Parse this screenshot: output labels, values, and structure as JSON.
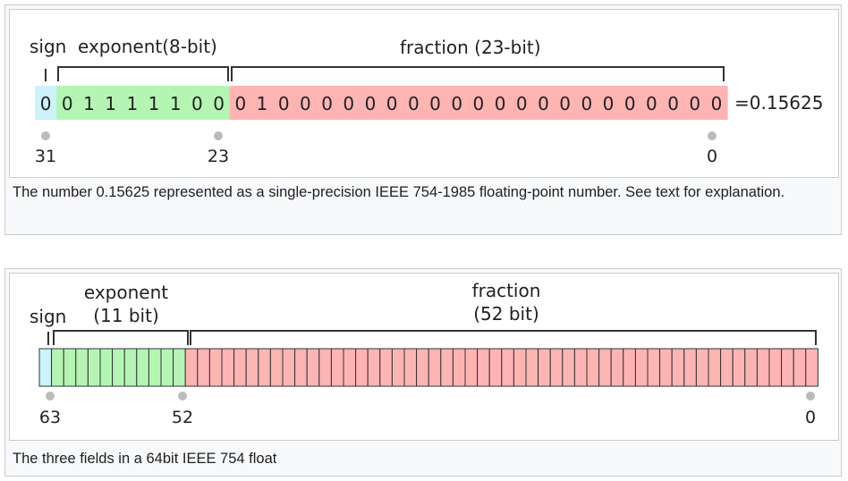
{
  "figure1": {
    "labels": {
      "sign": "sign",
      "exponent": "exponent(8-bit)",
      "fraction": "fraction (23-bit)"
    },
    "sign_bits": [
      "0"
    ],
    "exponent_bits": [
      "0",
      "1",
      "1",
      "1",
      "1",
      "1",
      "0",
      "0"
    ],
    "fraction_bits": [
      "0",
      "1",
      "0",
      "0",
      "0",
      "0",
      "0",
      "0",
      "0",
      "0",
      "0",
      "0",
      "0",
      "0",
      "0",
      "0",
      "0",
      "0",
      "0",
      "0",
      "0",
      "0",
      "0"
    ],
    "result": "=0.15625",
    "ticks": [
      "31",
      "23",
      "0"
    ],
    "caption": "The number 0.15625 represented as a single-precision IEEE 754-1985 floating-point number. See text for explanation."
  },
  "figure2": {
    "labels": {
      "sign": "sign",
      "exponent": "exponent",
      "exponent_size": "(11 bit)",
      "fraction": "fraction",
      "fraction_size": "(52 bit)"
    },
    "sign_bit_count": 1,
    "exponent_bit_count": 11,
    "fraction_bit_count": 52,
    "ticks": [
      "63",
      "52",
      "0"
    ],
    "caption": "The three fields in a 64bit IEEE 754 float"
  },
  "colors": {
    "sign": "#ccf2fa",
    "exponent": "#b4f5b4",
    "fraction": "#ffb4b4",
    "dot": "#bbbbbb"
  }
}
